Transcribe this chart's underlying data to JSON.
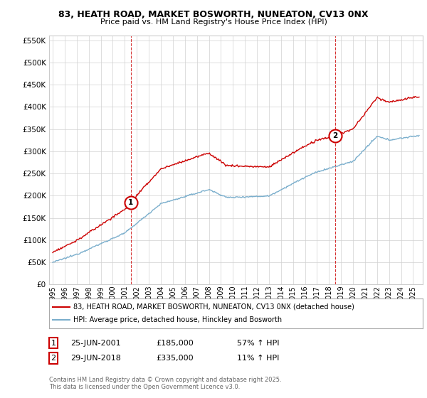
{
  "title_line1": "83, HEATH ROAD, MARKET BOSWORTH, NUNEATON, CV13 0NX",
  "title_line2": "Price paid vs. HM Land Registry's House Price Index (HPI)",
  "legend_line1": "83, HEATH ROAD, MARKET BOSWORTH, NUNEATON, CV13 0NX (detached house)",
  "legend_line2": "HPI: Average price, detached house, Hinckley and Bosworth",
  "ann1_date": "25-JUN-2001",
  "ann1_price": "£185,000",
  "ann1_hpi": "57% ↑ HPI",
  "ann2_date": "29-JUN-2018",
  "ann2_price": "£335,000",
  "ann2_hpi": "11% ↑ HPI",
  "footer": "Contains HM Land Registry data © Crown copyright and database right 2025.\nThis data is licensed under the Open Government Licence v3.0.",
  "sale1_year": 2001.49,
  "sale1_price": 185000,
  "sale2_year": 2018.49,
  "sale2_price": 335000,
  "hpi_color": "#7aaecc",
  "property_color": "#cc0000",
  "dashed_color": "#cc0000",
  "background_color": "#ffffff",
  "ylim": [
    0,
    560000
  ],
  "yticks": [
    0,
    50000,
    100000,
    150000,
    200000,
    250000,
    300000,
    350000,
    400000,
    450000,
    500000,
    550000
  ],
  "start_year": 1994.7,
  "end_year": 2025.8
}
